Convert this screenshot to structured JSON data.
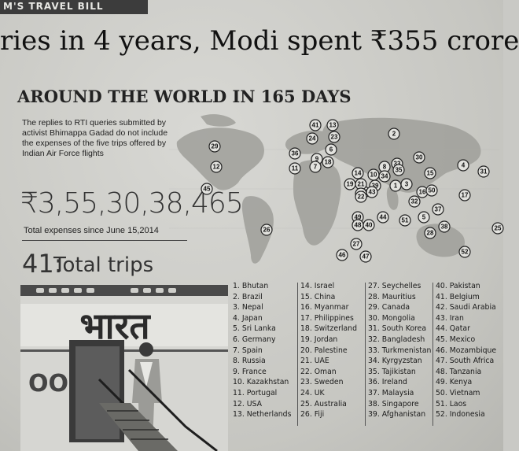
{
  "kicker": "M'S TRAVEL BILL",
  "headline": "ries in 4 years, Modi spent ₹355 crore",
  "subhead": "AROUND THE WORLD IN 165 DAYS",
  "blurb": "The replies to RTI queries submitted by activist Bhimappa Gadad do not include the expenses of the five trips offered by Indian Air Force flights",
  "amount": "₹3,55,30,38,465",
  "amount_label": "Total expenses since June 15,2014",
  "trips_number": "41:",
  "trips_label": "Total trips",
  "countries": [
    [
      "1. Bhutan",
      "2. Brazil",
      "3. Nepal",
      "4. Japan",
      "5. Sri Lanka",
      "6. Germany",
      "7. Spain",
      "8. Russia",
      "9. France",
      "10. Kazakhstan",
      "11. Portugal",
      "12. USA",
      "13. Netherlands"
    ],
    [
      "14. Israel",
      "15. China",
      "16. Myanmar",
      "17. Philippines",
      "18. Switzerland",
      "19. Jordan",
      "20. Palestine",
      "21. UAE",
      "22. Oman",
      "23. Sweden",
      "24. UK",
      "25. Australia",
      "26. Fiji"
    ],
    [
      "27. Seychelles",
      "28. Mauritius",
      "29. Canada",
      "30. Mongolia",
      "31. South Korea",
      "32. Bangladesh",
      "33. Turkmenistan",
      "34. Kyrgyzstan",
      "35. Tajikistan",
      "36. Ireland",
      "37. Malaysia",
      "38. Singapore",
      "39. Afghanistan"
    ],
    [
      "40. Pakistan",
      "41. Belgium",
      "42. Saudi Arabia",
      "43. Iran",
      "44. Qatar",
      "45. Mexico",
      "46. Mozambique",
      "47. South Africa",
      "48. Tanzania",
      "49. Kenya",
      "50. Vietnam",
      "51. Laos",
      "52. Indonesia"
    ]
  ],
  "map_pins": [
    "41",
    "13",
    "23",
    "24",
    "6",
    "36",
    "9",
    "18",
    "11",
    "7",
    "29",
    "12",
    "45",
    "2",
    "8",
    "33",
    "10",
    "34",
    "30",
    "4",
    "31",
    "14",
    "20",
    "39",
    "35",
    "21",
    "19",
    "42",
    "43",
    "22",
    "1",
    "3",
    "16",
    "15",
    "50",
    "17",
    "32",
    "37",
    "51",
    "5",
    "49",
    "48",
    "40",
    "44",
    "27",
    "46",
    "47",
    "28",
    "38",
    "52",
    "25",
    "26"
  ],
  "plane_text": "भारत",
  "plane_text2": "OO"
}
